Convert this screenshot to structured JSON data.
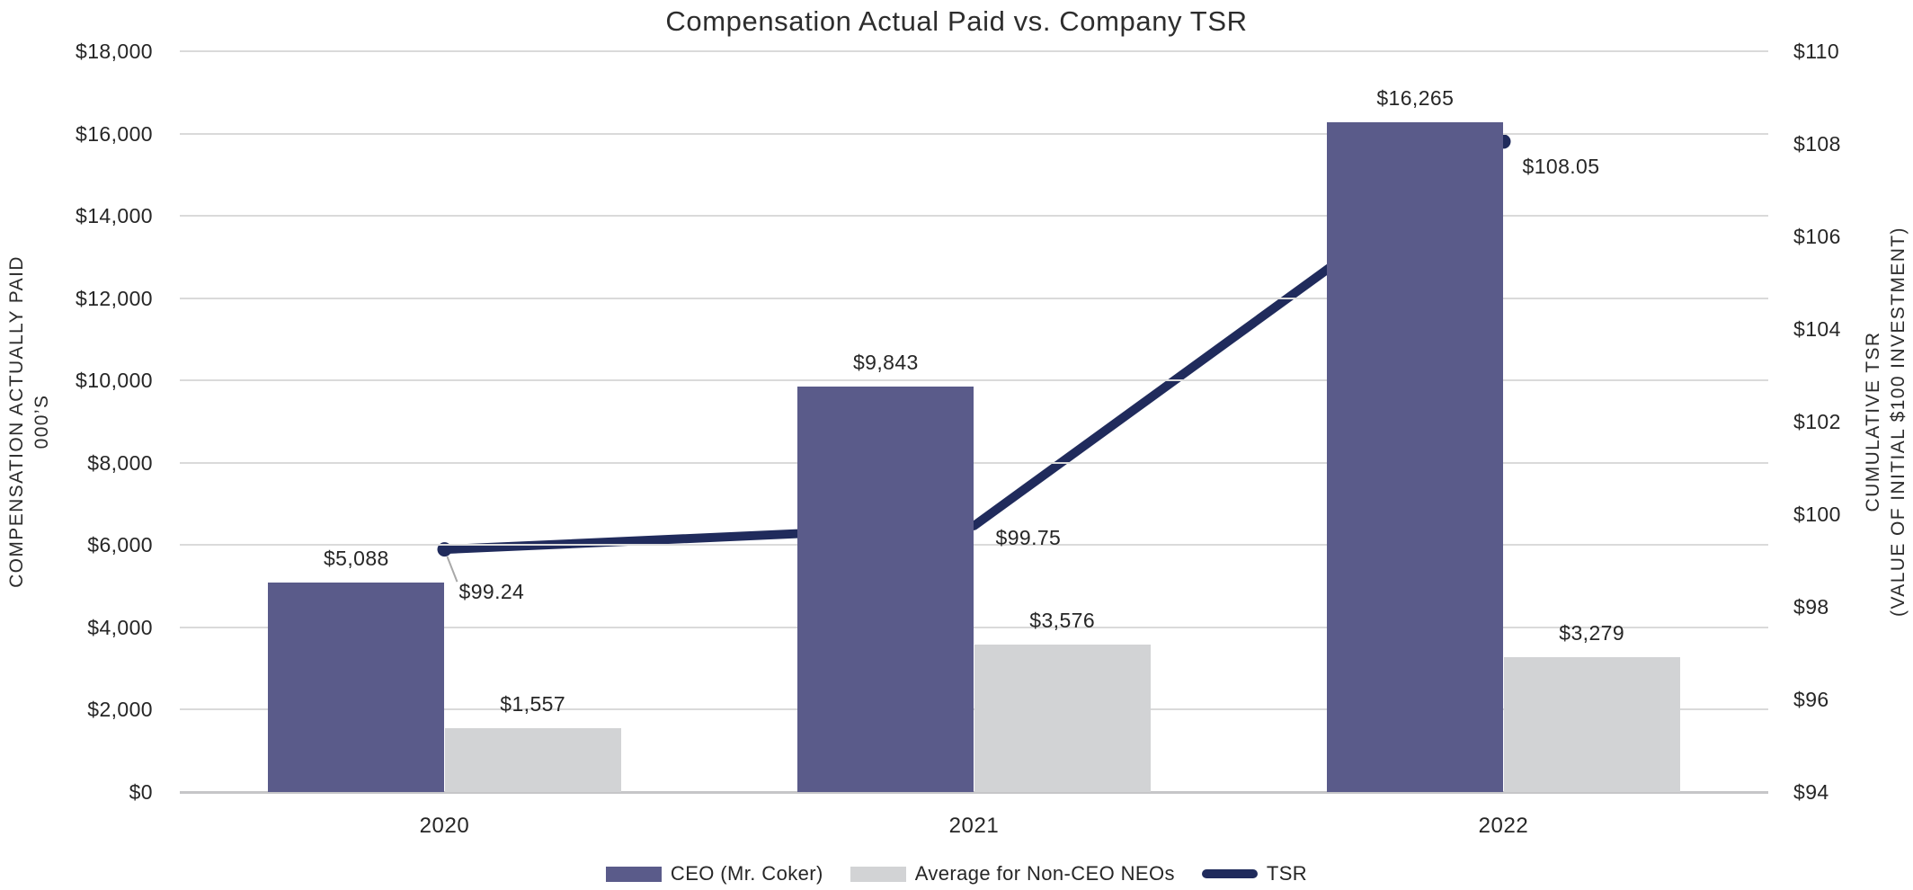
{
  "title": "Compensation Actual Paid vs. Company TSR",
  "colors": {
    "ceo_bar": "#5a5b8a",
    "neo_bar": "#d2d3d5",
    "tsr_line": "#202b5c",
    "gridline": "#dadada",
    "baseline": "#c6c6c8",
    "text": "#262626",
    "leader_line": "#a8a8a8"
  },
  "left_axis": {
    "title_line1": "COMPENSATION ACTUALLY PAID",
    "title_line2": "000’S",
    "min": 0,
    "max": 18000,
    "step": 2000,
    "tick_labels": [
      "$18,000",
      "$16,000",
      "$14,000",
      "$12,000",
      "$10,000",
      "$8,000",
      "$6,000",
      "$4,000",
      "$2,000",
      "$0"
    ]
  },
  "right_axis": {
    "title_line1": "CUMULATIVE TSR",
    "title_line2": "(VALUE OF INITIAL $100 INVESTMENT)",
    "min": 94,
    "max": 110,
    "step": 2,
    "tick_labels": [
      "$110",
      "$108",
      "$106",
      "$104",
      "$102",
      "$100",
      "$98",
      "$96",
      "$94"
    ]
  },
  "chart_data": {
    "type": "bar+line",
    "title": "Compensation Actual Paid vs. Company TSR",
    "categories": [
      "2020",
      "2021",
      "2022"
    ],
    "series": [
      {
        "name": "CEO (Mr. Coker)",
        "type": "bar",
        "axis": "left",
        "values": [
          5088,
          9843,
          16265
        ],
        "labels": [
          "$5,088",
          "$9,843",
          "$16,265"
        ],
        "color": "#5a5b8a"
      },
      {
        "name": "Average for Non-CEO NEOs",
        "type": "bar",
        "axis": "left",
        "values": [
          1557,
          3576,
          3279
        ],
        "labels": [
          "$1,557",
          "$3,576",
          "$3,279"
        ],
        "color": "#d2d3d5"
      },
      {
        "name": "TSR",
        "type": "line",
        "axis": "right",
        "values": [
          99.24,
          99.75,
          108.05
        ],
        "labels": [
          "$99.24",
          "$99.75",
          "$108.05"
        ],
        "color": "#202b5c"
      }
    ],
    "left_ylabel": "COMPENSATION ACTUALLY PAID 000’S",
    "right_ylabel": "CUMULATIVE TSR (VALUE OF INITIAL $100 INVESTMENT)",
    "left_ylim": [
      0,
      18000
    ],
    "right_ylim": [
      94,
      110
    ],
    "grid": true,
    "legend_position": "bottom"
  },
  "legend": {
    "items": [
      {
        "label": "CEO (Mr. Coker)",
        "swatch": "bar",
        "color": "#5a5b8a"
      },
      {
        "label": "Average for Non-CEO NEOs",
        "swatch": "bar",
        "color": "#d2d3d5"
      },
      {
        "label": "TSR",
        "swatch": "line",
        "color": "#202b5c"
      }
    ]
  }
}
